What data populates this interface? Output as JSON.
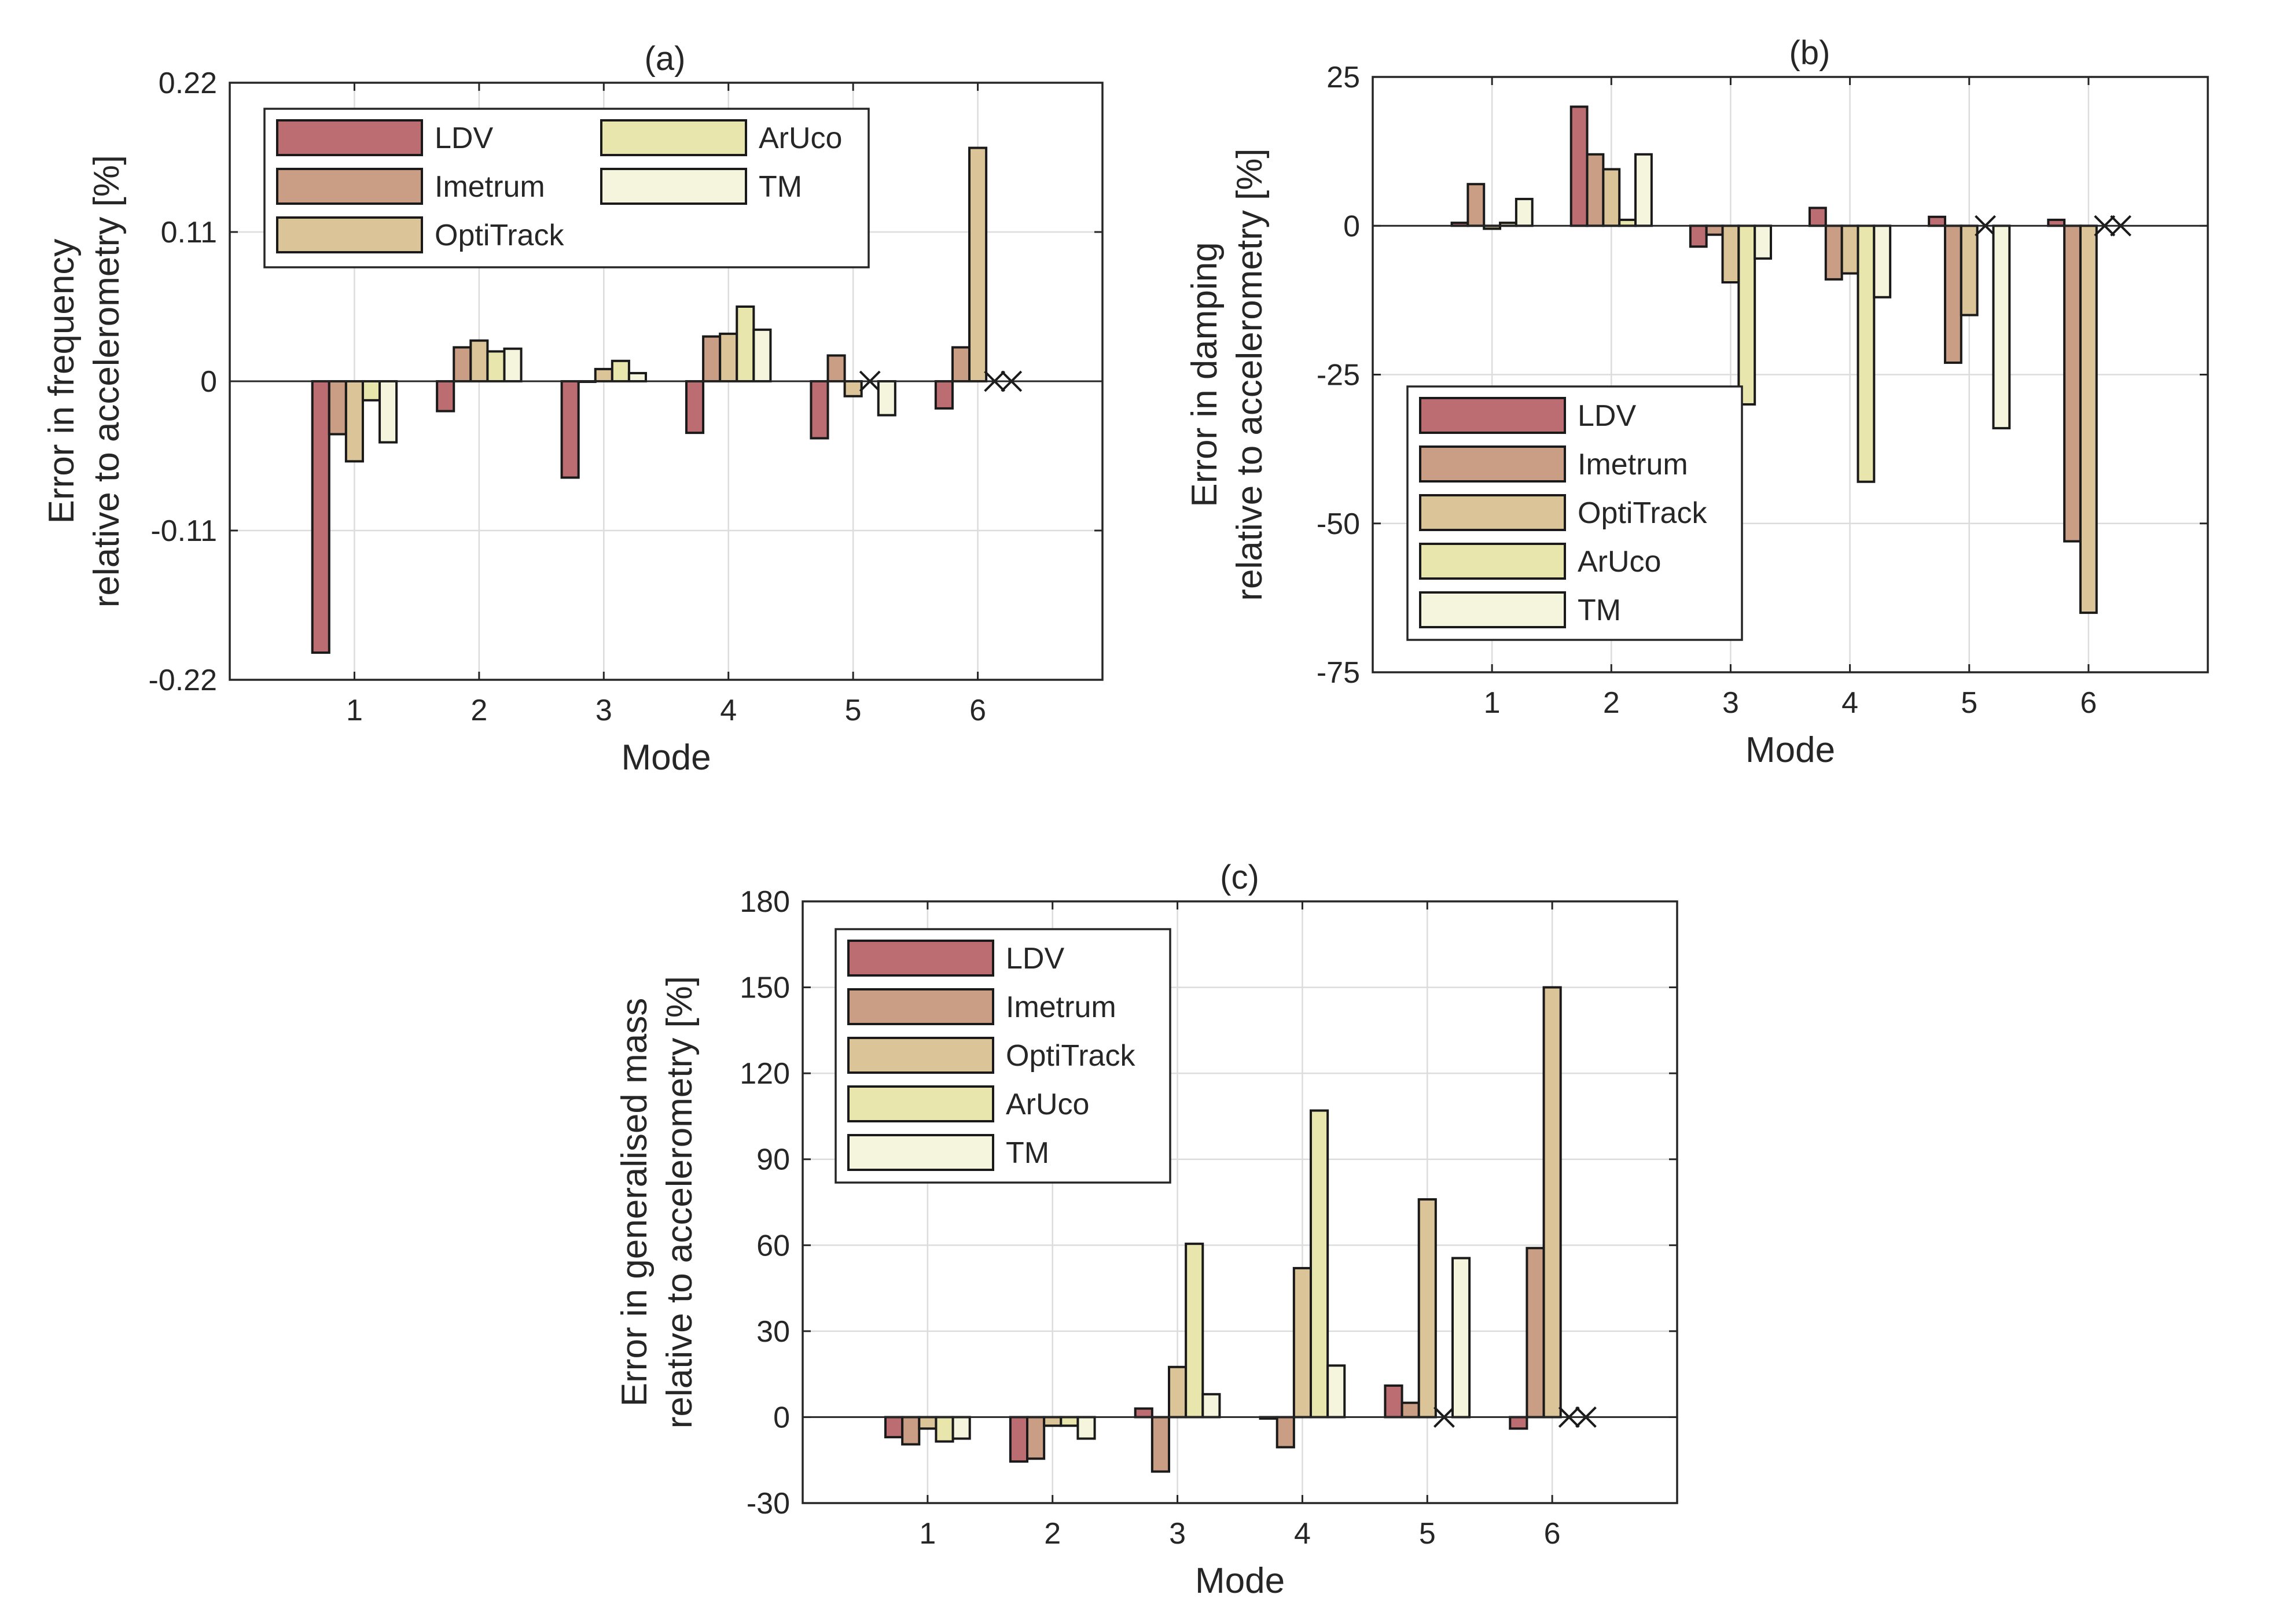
{
  "colors": {
    "LDV": "#bb6d72",
    "Imetrum": "#ca9e84",
    "OptiTrack": "#dbc598",
    "ArUco": "#e8e6ad",
    "TM": "#f5f4dc"
  },
  "chart_data": [
    {
      "id": "a",
      "type": "bar",
      "title": "(a)",
      "xlabel": "Mode",
      "ylabel": [
        "Error in frequency",
        "relative to accelerometry [%]"
      ],
      "categories": [
        "1",
        "2",
        "3",
        "4",
        "5",
        "6"
      ],
      "ylim": [
        -0.22,
        0.22
      ],
      "yticks": [
        -0.22,
        -0.11,
        0,
        0.11,
        0.22
      ],
      "ytick_labels": [
        "-0.22",
        "-0.11",
        "0",
        "0.11",
        "0.22"
      ],
      "legend": {
        "position": "top-left",
        "columns": 2,
        "entries": [
          "LDV",
          "Imetrum",
          "OptiTrack",
          "ArUco",
          "TM"
        ]
      },
      "series": [
        {
          "name": "LDV",
          "values": [
            -0.2,
            -0.022,
            -0.071,
            -0.038,
            -0.042,
            -0.02
          ]
        },
        {
          "name": "Imetrum",
          "values": [
            -0.039,
            0.025,
            0.0,
            0.033,
            0.019,
            0.025
          ]
        },
        {
          "name": "OptiTrack",
          "values": [
            -0.059,
            0.03,
            0.009,
            0.035,
            -0.011,
            0.172
          ]
        },
        {
          "name": "ArUco",
          "values": [
            -0.014,
            0.022,
            0.015,
            0.055,
            null,
            null
          ]
        },
        {
          "name": "TM",
          "values": [
            -0.045,
            0.024,
            0.006,
            0.038,
            -0.025,
            null
          ]
        }
      ]
    },
    {
      "id": "b",
      "type": "bar",
      "title": "(b)",
      "xlabel": "Mode",
      "ylabel": [
        "Error in damping",
        "relative to accelerometry [%]"
      ],
      "categories": [
        "1",
        "2",
        "3",
        "4",
        "5",
        "6"
      ],
      "ylim": [
        -75,
        25
      ],
      "yticks": [
        -75,
        -50,
        -25,
        0,
        25
      ],
      "ytick_labels": [
        "-75",
        "-50",
        "-25",
        "0",
        "25"
      ],
      "legend": {
        "position": "bottom-left",
        "columns": 1,
        "entries": [
          "LDV",
          "Imetrum",
          "OptiTrack",
          "ArUco",
          "TM"
        ]
      },
      "series": [
        {
          "name": "LDV",
          "values": [
            0.5,
            20,
            -3.5,
            3,
            1.5,
            1
          ]
        },
        {
          "name": "Imetrum",
          "values": [
            7,
            12,
            -1.5,
            -9,
            -23,
            -53
          ]
        },
        {
          "name": "OptiTrack",
          "values": [
            -0.5,
            9.5,
            -9.5,
            -8,
            -15,
            -65
          ]
        },
        {
          "name": "ArUco",
          "values": [
            0.5,
            1,
            -30,
            -43,
            null,
            null
          ]
        },
        {
          "name": "TM",
          "values": [
            4.5,
            12,
            -5.5,
            -12,
            -34,
            null
          ]
        }
      ]
    },
    {
      "id": "c",
      "type": "bar",
      "title": "(c)",
      "xlabel": "Mode",
      "ylabel": [
        "Error in generalised mass",
        "relative to accelerometry [%]"
      ],
      "categories": [
        "1",
        "2",
        "3",
        "4",
        "5",
        "6"
      ],
      "ylim": [
        -30,
        180
      ],
      "yticks": [
        -30,
        0,
        30,
        60,
        90,
        120,
        150,
        180
      ],
      "ytick_labels": [
        "-30",
        "0",
        "30",
        "60",
        "90",
        "120",
        "150",
        "180"
      ],
      "legend": {
        "position": "top-left",
        "columns": 1,
        "entries": [
          "LDV",
          "Imetrum",
          "OptiTrack",
          "ArUco",
          "TM"
        ]
      },
      "series": [
        {
          "name": "LDV",
          "values": [
            -7,
            -15.5,
            3,
            -0.5,
            11,
            -4
          ]
        },
        {
          "name": "Imetrum",
          "values": [
            -9.5,
            -14.5,
            -19,
            -10.5,
            5,
            59
          ]
        },
        {
          "name": "OptiTrack",
          "values": [
            -4,
            -3,
            17.5,
            52,
            76,
            150
          ]
        },
        {
          "name": "ArUco",
          "values": [
            -8.5,
            -3,
            60.5,
            107,
            null,
            null
          ]
        },
        {
          "name": "TM",
          "values": [
            -7.5,
            -7.5,
            8,
            18,
            55.5,
            null
          ]
        }
      ]
    }
  ]
}
